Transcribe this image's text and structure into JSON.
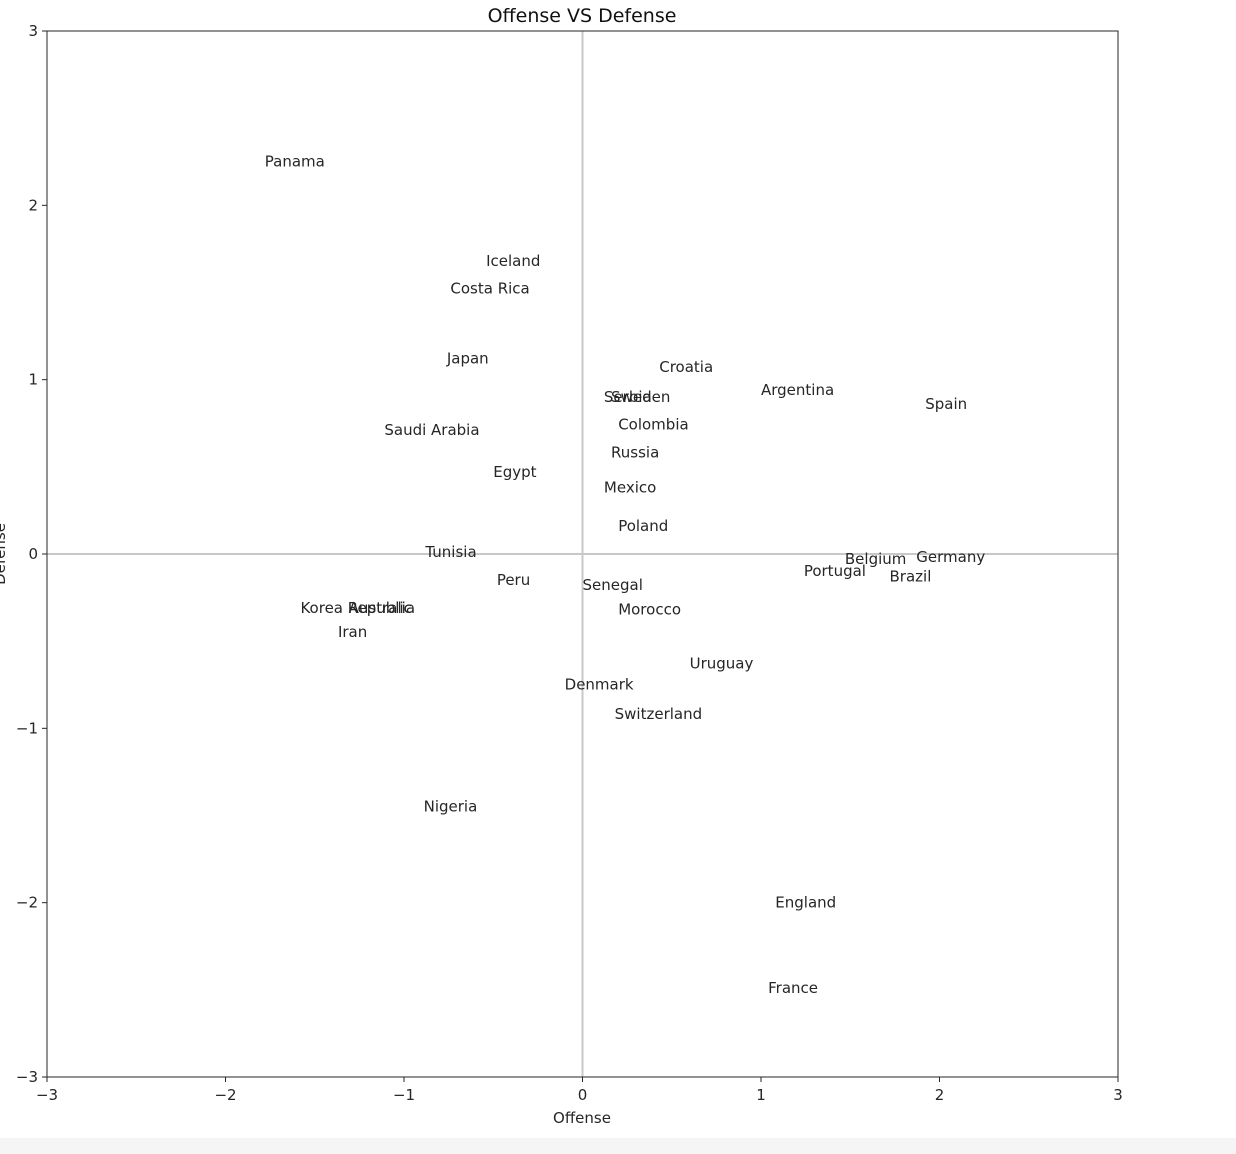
{
  "chart_data": {
    "type": "scatter",
    "title": "Offense VS Defense",
    "xlabel": "Offense",
    "ylabel": "Defense",
    "xlim": [
      -3,
      3
    ],
    "ylim": [
      -3,
      3
    ],
    "xticks": [
      -3,
      -2,
      -1,
      0,
      1,
      2,
      3
    ],
    "yticks": [
      -3,
      -2,
      -1,
      0,
      1,
      2,
      3
    ],
    "xtick_labels": [
      "−3",
      "−2",
      "−1",
      "0",
      "1",
      "2",
      "3"
    ],
    "ytick_labels": [
      "−3",
      "−2",
      "−1",
      "0",
      "1",
      "2",
      "3"
    ],
    "reference_lines": {
      "x": 0,
      "y": 0
    },
    "grid": false,
    "points": [
      {
        "label": "Panama",
        "x": -1.78,
        "y": 2.2
      },
      {
        "label": "Iceland",
        "x": -0.54,
        "y": 1.63
      },
      {
        "label": "Costa Rica",
        "x": -0.74,
        "y": 1.47
      },
      {
        "label": "Japan",
        "x": -0.76,
        "y": 1.07
      },
      {
        "label": "Saudi Arabia",
        "x": -1.11,
        "y": 0.66
      },
      {
        "label": "Egypt",
        "x": -0.5,
        "y": 0.42
      },
      {
        "label": "Croatia",
        "x": 0.43,
        "y": 1.02
      },
      {
        "label": "Argentina",
        "x": 1.0,
        "y": 0.89
      },
      {
        "label": "Spain",
        "x": 1.92,
        "y": 0.81
      },
      {
        "label": "Serbia",
        "x": 0.12,
        "y": 0.85
      },
      {
        "label": "Sweden",
        "x": 0.16,
        "y": 0.85
      },
      {
        "label": "Colombia",
        "x": 0.2,
        "y": 0.69
      },
      {
        "label": "Russia",
        "x": 0.16,
        "y": 0.53
      },
      {
        "label": "Mexico",
        "x": 0.12,
        "y": 0.33
      },
      {
        "label": "Poland",
        "x": 0.2,
        "y": 0.11
      },
      {
        "label": "Tunisia",
        "x": -0.88,
        "y": -0.04
      },
      {
        "label": "Peru",
        "x": -0.48,
        "y": -0.2
      },
      {
        "label": "Senegal",
        "x": 0.0,
        "y": -0.23
      },
      {
        "label": "Morocco",
        "x": 0.2,
        "y": -0.37
      },
      {
        "label": "Belgium",
        "x": 1.47,
        "y": -0.08
      },
      {
        "label": "Germany",
        "x": 1.87,
        "y": -0.07
      },
      {
        "label": "Portugal",
        "x": 1.24,
        "y": -0.15
      },
      {
        "label": "Brazil",
        "x": 1.72,
        "y": -0.18
      },
      {
        "label": "Korea Republic",
        "x": -1.58,
        "y": -0.36
      },
      {
        "label": "Australia",
        "x": -1.31,
        "y": -0.36
      },
      {
        "label": "Iran",
        "x": -1.37,
        "y": -0.5
      },
      {
        "label": "Uruguay",
        "x": 0.6,
        "y": -0.68
      },
      {
        "label": "Denmark",
        "x": -0.1,
        "y": -0.8
      },
      {
        "label": "Switzerland",
        "x": 0.18,
        "y": -0.97
      },
      {
        "label": "Nigeria",
        "x": -0.89,
        "y": -1.5
      },
      {
        "label": "England",
        "x": 1.08,
        "y": -2.05
      },
      {
        "label": "France",
        "x": 1.04,
        "y": -2.54
      }
    ]
  }
}
